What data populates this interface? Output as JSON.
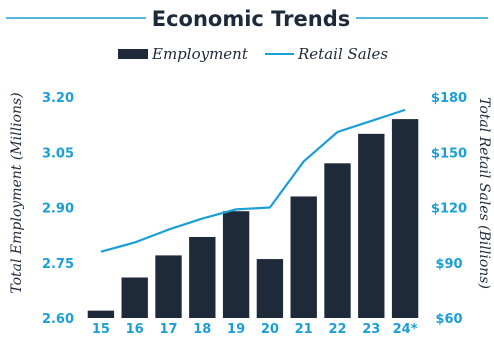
{
  "chart_data": {
    "type": "bar",
    "title": "Economic Trends",
    "categories": [
      "15",
      "16",
      "17",
      "18",
      "19",
      "20",
      "21",
      "22",
      "23",
      "24*"
    ],
    "series": [
      {
        "name": "Employment",
        "type": "bar",
        "axis": "left",
        "values": [
          2.62,
          2.71,
          2.77,
          2.82,
          2.89,
          2.76,
          2.93,
          3.02,
          3.1,
          3.14
        ]
      },
      {
        "name": "Retail Sales",
        "type": "line",
        "axis": "right",
        "values": [
          96,
          101,
          108,
          114,
          119,
          120,
          145,
          161,
          167,
          173
        ]
      }
    ],
    "ylabel": "Total Employment (Millions)",
    "y2label": "Total Retail Sales (Billions)",
    "ylim": [
      2.6,
      3.2
    ],
    "y2lim": [
      60,
      180
    ],
    "yticks": [
      "2.60",
      "2.75",
      "2.90",
      "3.05",
      "3.20"
    ],
    "y2ticks": [
      "$60",
      "$90",
      "$120",
      "$150",
      "$180"
    ],
    "legend_position": "top-center",
    "grid": false,
    "colors": {
      "bar": "#1e2a3a",
      "line": "#1a9fd6",
      "ticks": "#1a9fd6",
      "title": "#1e2a3a"
    }
  }
}
